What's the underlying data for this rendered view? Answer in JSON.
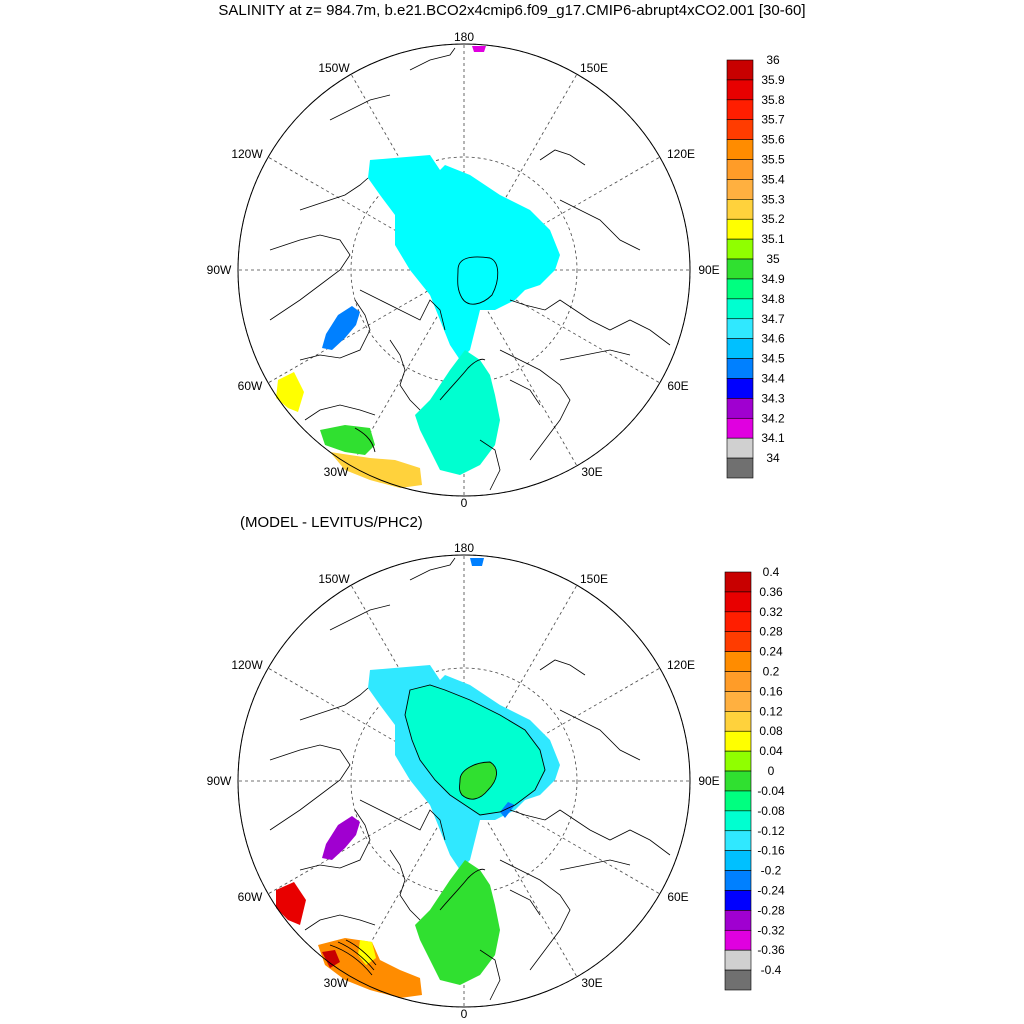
{
  "title": "SALINITY at z= 984.7m, b.e21.BCO2x4cmip6.f09_g17.CMIP6-abrupt4xCO2.001 [30-60]",
  "subtitle": "(MODEL - LEVITUS/PHC2)",
  "map_labels": {
    "lon_180": "180",
    "lon_150w": "150W",
    "lon_150e": "150E",
    "lon_120w": "120W",
    "lon_120e": "120E",
    "lon_90w": "90W",
    "lon_90e": "90E",
    "lon_60w": "60W",
    "lon_60e": "60E",
    "lon_30w": "30W",
    "lon_30e": "30E",
    "lon_0": "0"
  },
  "top_colorbar": {
    "labels": [
      "36",
      "35.9",
      "35.8",
      "35.7",
      "35.6",
      "35.5",
      "35.4",
      "35.3",
      "35.2",
      "35.1",
      "35",
      "34.9",
      "34.8",
      "34.7",
      "34.6",
      "34.5",
      "34.4",
      "34.3",
      "34.2",
      "34.1",
      "34"
    ],
    "colors": [
      "#c80000",
      "#e80000",
      "#ff1e00",
      "#ff3c00",
      "#ff8c00",
      "#ff9c28",
      "#ffb040",
      "#ffd23c",
      "#ffff00",
      "#90ff00",
      "#30e030",
      "#00ff80",
      "#00ffd0",
      "#30e8ff",
      "#00c0ff",
      "#0080ff",
      "#0000ff",
      "#a000d0",
      "#e000e0",
      "#d0d0d0",
      "#707070"
    ]
  },
  "bottom_colorbar": {
    "labels": [
      "0.4",
      "0.36",
      "0.32",
      "0.28",
      "0.24",
      "0.2",
      "0.16",
      "0.12",
      "0.08",
      "0.04",
      "0",
      "-0.04",
      "-0.08",
      "-0.12",
      "-0.16",
      "-0.2",
      "-0.24",
      "-0.28",
      "-0.32",
      "-0.36",
      "-0.4"
    ],
    "colors": [
      "#c80000",
      "#e80000",
      "#ff1e00",
      "#ff3c00",
      "#ff8c00",
      "#ff9c28",
      "#ffb040",
      "#ffd23c",
      "#ffff00",
      "#90ff00",
      "#30e030",
      "#00ff80",
      "#00ffd0",
      "#30e8ff",
      "#00c0ff",
      "#0080ff",
      "#0000ff",
      "#a000d0",
      "#e000e0",
      "#d0d0d0",
      "#707070"
    ]
  },
  "fill_colors": {
    "top_arctic": "#00ffff",
    "top_nordic": "#00ffd0",
    "top_labrador": "#0080ff",
    "top_atlantic_yellow": "#ffff00",
    "top_atlantic_green": "#30e030",
    "top_atlantic_orange": "#ffd23c",
    "bottom_arctic": "#00ffd0",
    "bottom_arctic_edge": "#30e8ff",
    "bottom_nordic": "#30e030",
    "bottom_labrador": "#a000d0",
    "bottom_atlantic_red": "#e80000",
    "bottom_atlantic_orange": "#ff8c00"
  }
}
